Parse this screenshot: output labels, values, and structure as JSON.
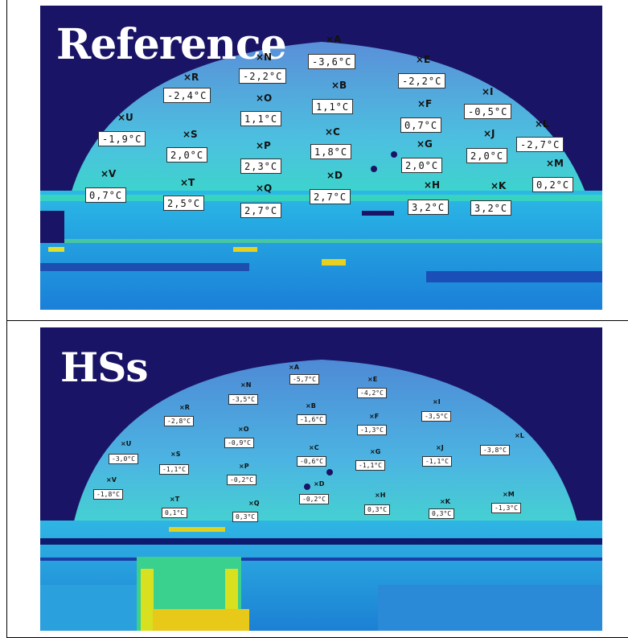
{
  "panels": [
    {
      "title": "Reference",
      "points": [
        {
          "letter": "A",
          "value": "-3,6°C"
        },
        {
          "letter": "B",
          "value": "1,1°C"
        },
        {
          "letter": "C",
          "value": "1,8°C"
        },
        {
          "letter": "D",
          "value": "2,7°C"
        },
        {
          "letter": "E",
          "value": "-2,2°C"
        },
        {
          "letter": "F",
          "value": "0,7°C"
        },
        {
          "letter": "G",
          "value": "2,0°C"
        },
        {
          "letter": "H",
          "value": "3,2°C"
        },
        {
          "letter": "I",
          "value": "-0,5°C"
        },
        {
          "letter": "J",
          "value": "2,0°C"
        },
        {
          "letter": "K",
          "value": "3,2°C"
        },
        {
          "letter": "L",
          "value": "-2,7°C"
        },
        {
          "letter": "M",
          "value": "0,2°C"
        },
        {
          "letter": "N",
          "value": "-2,2°C"
        },
        {
          "letter": "O",
          "value": "1,1°C"
        },
        {
          "letter": "P",
          "value": "2,3°C"
        },
        {
          "letter": "Q",
          "value": "2,7°C"
        },
        {
          "letter": "R",
          "value": "-2,4°C"
        },
        {
          "letter": "S",
          "value": "2,0°C"
        },
        {
          "letter": "T",
          "value": "2,5°C"
        },
        {
          "letter": "U",
          "value": "-1,9°C"
        },
        {
          "letter": "V",
          "value": "0,7°C"
        }
      ]
    },
    {
      "title": "HSs",
      "points": [
        {
          "letter": "A",
          "value": "-5,7°C"
        },
        {
          "letter": "B",
          "value": "-1,6°C"
        },
        {
          "letter": "C",
          "value": "-0,6°C"
        },
        {
          "letter": "D",
          "value": "-0,2°C"
        },
        {
          "letter": "E",
          "value": "-4,2°C"
        },
        {
          "letter": "F",
          "value": "-1,3°C"
        },
        {
          "letter": "G",
          "value": "-1,1°C"
        },
        {
          "letter": "H",
          "value": "0,3°C"
        },
        {
          "letter": "I",
          "value": "-3,5°C"
        },
        {
          "letter": "J",
          "value": "-1,1°C"
        },
        {
          "letter": "K",
          "value": "0,3°C"
        },
        {
          "letter": "L",
          "value": "-3,8°C"
        },
        {
          "letter": "M",
          "value": "-1,3°C"
        },
        {
          "letter": "N",
          "value": "-3,5°C"
        },
        {
          "letter": "O",
          "value": "-0,9°C"
        },
        {
          "letter": "P",
          "value": "-0,2°C"
        },
        {
          "letter": "Q",
          "value": "0,3°C"
        },
        {
          "letter": "R",
          "value": "-2,8°C"
        },
        {
          "letter": "S",
          "value": "-1,1°C"
        },
        {
          "letter": "T",
          "value": "0,1°C"
        },
        {
          "letter": "U",
          "value": "-3,0°C"
        },
        {
          "letter": "V",
          "value": "-1,8°C"
        }
      ]
    }
  ],
  "colors": {
    "sky": "#1a1466",
    "dome_top": "#5a9fd8",
    "dome_bottom": "#2fd6c6",
    "ground": "#1c9fe0",
    "hot": "#f2d21a"
  }
}
